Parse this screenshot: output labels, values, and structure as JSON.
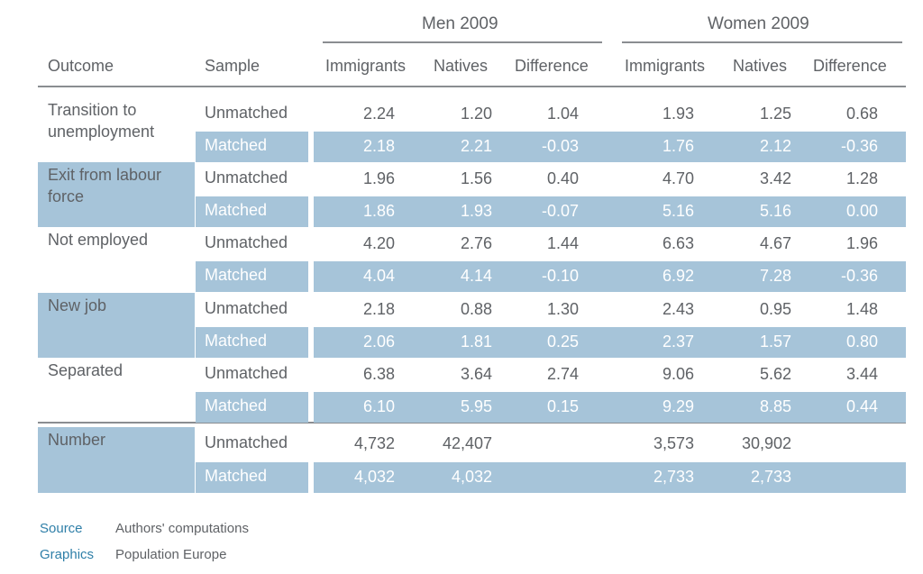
{
  "colors": {
    "shade": "#a6c4d9",
    "text": "#5f6266",
    "accent": "#2f7fa8",
    "rule": "#8a8d91"
  },
  "header": {
    "group_men": "Men 2009",
    "group_women": "Women 2009",
    "outcome": "Outcome",
    "sample": "Sample",
    "men_cols": [
      "Immigrants",
      "Natives",
      "Difference"
    ],
    "women_cols": [
      "Immigrants",
      "Natives",
      "Difference"
    ]
  },
  "outcomes": [
    {
      "label": "Transition to unemployment",
      "rows": [
        {
          "sample": "Unmatched",
          "men": [
            "2.24",
            "1.20",
            "1.04"
          ],
          "women": [
            "1.93",
            "1.25",
            "0.68"
          ]
        },
        {
          "sample": "Matched",
          "men": [
            "2.18",
            "2.21",
            "-0.03"
          ],
          "women": [
            "1.76",
            "2.12",
            "-0.36"
          ]
        }
      ]
    },
    {
      "label": "Exit from labour force",
      "rows": [
        {
          "sample": "Unmatched",
          "men": [
            "1.96",
            "1.56",
            "0.40"
          ],
          "women": [
            "4.70",
            "3.42",
            "1.28"
          ]
        },
        {
          "sample": "Matched",
          "men": [
            "1.86",
            "1.93",
            "-0.07"
          ],
          "women": [
            "5.16",
            "5.16",
            "0.00"
          ]
        }
      ]
    },
    {
      "label": "Not employed",
      "rows": [
        {
          "sample": "Unmatched",
          "men": [
            "4.20",
            "2.76",
            "1.44"
          ],
          "women": [
            "6.63",
            "4.67",
            "1.96"
          ]
        },
        {
          "sample": "Matched",
          "men": [
            "4.04",
            "4.14",
            "-0.10"
          ],
          "women": [
            "6.92",
            "7.28",
            "-0.36"
          ]
        }
      ]
    },
    {
      "label": "New job",
      "rows": [
        {
          "sample": "Unmatched",
          "men": [
            "2.18",
            "0.88",
            "1.30"
          ],
          "women": [
            "2.43",
            "0.95",
            "1.48"
          ]
        },
        {
          "sample": "Matched",
          "men": [
            "2.06",
            "1.81",
            "0.25"
          ],
          "women": [
            "2.37",
            "1.57",
            "0.80"
          ]
        }
      ]
    },
    {
      "label": "Separated",
      "rows": [
        {
          "sample": "Unmatched",
          "men": [
            "6.38",
            "3.64",
            "2.74"
          ],
          "women": [
            "9.06",
            "5.62",
            "3.44"
          ]
        },
        {
          "sample": "Matched",
          "men": [
            "6.10",
            "5.95",
            "0.15"
          ],
          "women": [
            "9.29",
            "8.85",
            "0.44"
          ]
        }
      ]
    },
    {
      "label": "Number",
      "rows": [
        {
          "sample": "Unmatched",
          "men": [
            "4,732",
            "42,407",
            ""
          ],
          "women": [
            "3,573",
            "30,902",
            ""
          ]
        },
        {
          "sample": "Matched",
          "men": [
            "4,032",
            "4,032",
            ""
          ],
          "women": [
            "2,733",
            "2,733",
            ""
          ]
        }
      ]
    }
  ],
  "footer": {
    "source_label": "Source",
    "source_value": "Authors' computations",
    "graphics_label": "Graphics",
    "graphics_value": "Population Europe"
  }
}
